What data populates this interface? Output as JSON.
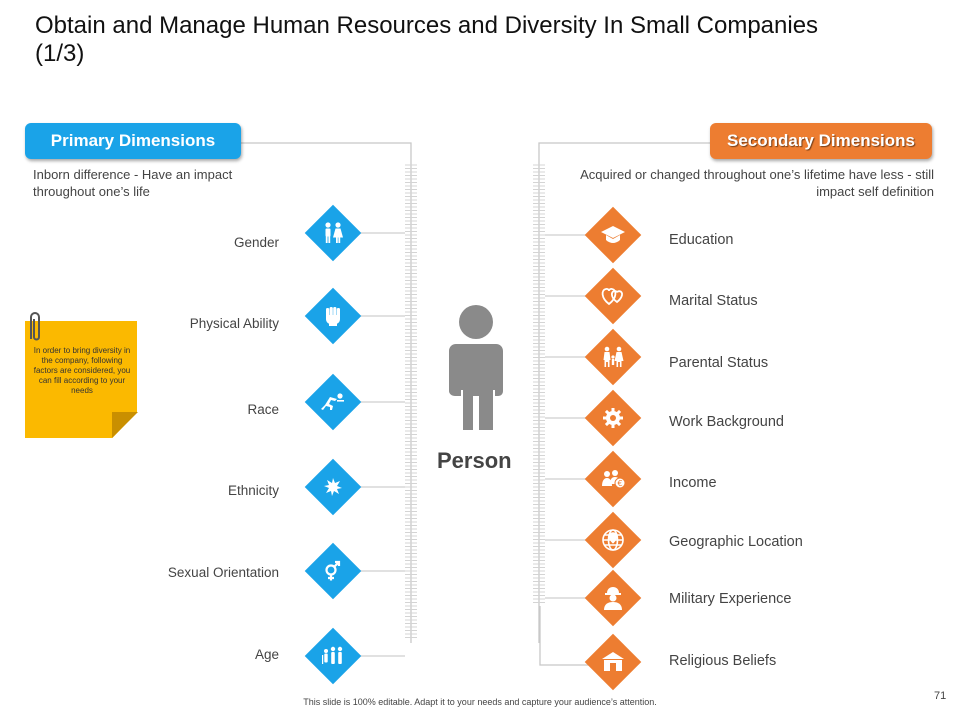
{
  "title": "Obtain and Manage Human Resources and Diversity In Small Companies (1/3)",
  "primary": {
    "label": "Primary Dimensions",
    "description": "Inborn difference - Have an impact throughout one’s life",
    "color": "#1aa3e8",
    "items": [
      {
        "label": "Gender",
        "icon": "gender-icon"
      },
      {
        "label": "Physical Ability",
        "icon": "fist-icon"
      },
      {
        "label": "Race",
        "icon": "race-runner-icon"
      },
      {
        "label": "Ethnicity",
        "icon": "star-icon"
      },
      {
        "label": "Sexual Orientation",
        "icon": "gender-symbol-icon"
      },
      {
        "label": "Age",
        "icon": "family-age-icon"
      }
    ]
  },
  "secondary": {
    "label": "Secondary Dimensions",
    "description": "Acquired or changed throughout one’s lifetime have less - still impact self definition",
    "color": "#ed7d31",
    "items": [
      {
        "label": "Education",
        "icon": "graduation-cap-icon"
      },
      {
        "label": "Marital Status",
        "icon": "hearts-icon"
      },
      {
        "label": "Parental Status",
        "icon": "parents-icon"
      },
      {
        "label": "Work Background",
        "icon": "gear-icon"
      },
      {
        "label": "Income",
        "icon": "income-people-icon"
      },
      {
        "label": "Geographic Location",
        "icon": "globe-pin-icon"
      },
      {
        "label": "Military Experience",
        "icon": "soldier-icon"
      },
      {
        "label": "Religious Beliefs",
        "icon": "temple-icon"
      }
    ]
  },
  "center": {
    "label": "Person",
    "icon": "person-icon"
  },
  "note": {
    "text": "In order to bring diversity in the company, following factors are considered, you can fill according to your needs"
  },
  "footer": "This slide is 100% editable. Adapt it to your needs and capture your audience’s attention.",
  "page_number": "71"
}
